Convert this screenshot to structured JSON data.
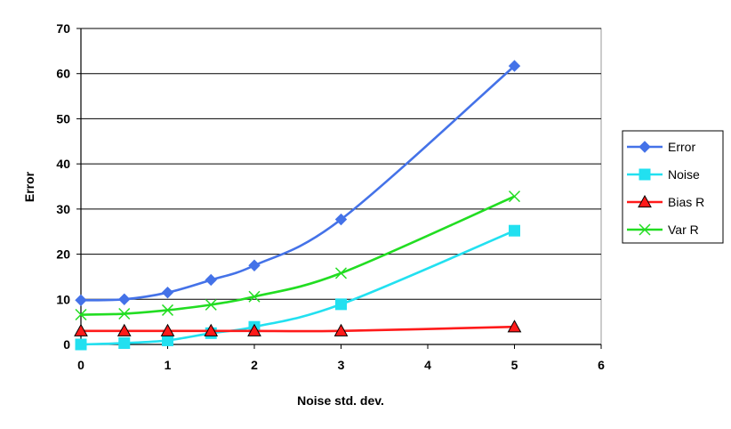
{
  "chart_data": {
    "type": "line",
    "title": "",
    "xlabel": "Noise std. dev.",
    "ylabel": "Error",
    "xlim": [
      0,
      6
    ],
    "ylim": [
      0,
      70
    ],
    "x_ticks": [
      0,
      1,
      2,
      3,
      4,
      5,
      6
    ],
    "y_ticks": [
      0,
      10,
      20,
      30,
      40,
      50,
      60,
      70
    ],
    "grid": "horizontal",
    "legend_position": "right",
    "x": [
      0,
      0.5,
      1,
      1.5,
      2,
      3,
      5
    ],
    "series": [
      {
        "name": "Error",
        "color": "#4472e8",
        "marker": "diamond",
        "values": [
          9.8,
          10.0,
          11.5,
          14.3,
          17.5,
          27.7,
          61.7
        ]
      },
      {
        "name": "Noise",
        "color": "#22e0f0",
        "marker": "square",
        "values": [
          0.0,
          0.3,
          0.9,
          2.5,
          3.9,
          8.9,
          25.2
        ]
      },
      {
        "name": "Bias R",
        "color": "#ff1a1a",
        "marker": "triangle",
        "values": [
          3.0,
          3.0,
          3.0,
          3.0,
          3.0,
          3.0,
          3.9
        ]
      },
      {
        "name": "Var R",
        "color": "#22dd22",
        "marker": "x",
        "values": [
          6.6,
          6.8,
          7.6,
          8.8,
          10.6,
          15.8,
          32.8
        ]
      }
    ]
  }
}
